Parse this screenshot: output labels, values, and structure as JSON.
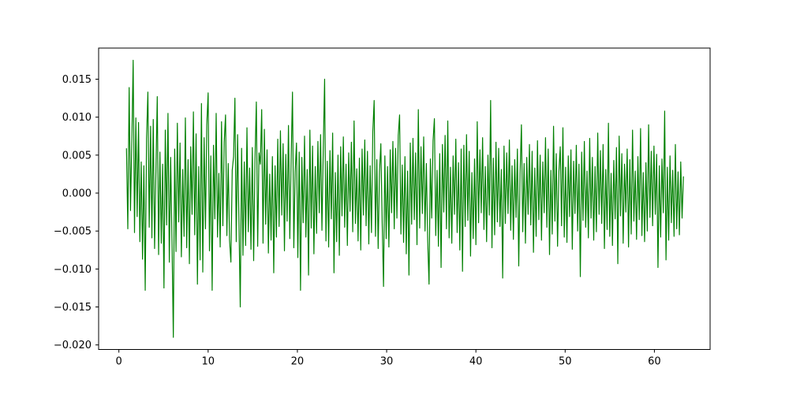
{
  "figure": {
    "background": "#ffffff"
  },
  "chart_data": {
    "type": "line",
    "title": "",
    "xlabel": "",
    "ylabel": "",
    "legend": null,
    "grid": false,
    "line_color": "#008000",
    "line_width": 1.2,
    "axis_color": "#000000",
    "xlim": [
      -2.27,
      66.24
    ],
    "ylim": [
      -0.0206,
      0.0191
    ],
    "x_tick_values": [
      0,
      10,
      20,
      30,
      40,
      50,
      60
    ],
    "x_tick_labels": [
      "0",
      "10",
      "20",
      "30",
      "40",
      "50",
      "60"
    ],
    "y_tick_values": [
      0.015,
      0.01,
      0.005,
      0.0,
      -0.005,
      -0.01,
      -0.015,
      -0.02
    ],
    "y_tick_labels": [
      "0.015",
      "0.010",
      "0.005",
      "0.000",
      "−0.005",
      "−0.010",
      "−0.015",
      "−0.020"
    ],
    "x_start": 0.85,
    "x_step": 0.15,
    "y_scale": 0.0001,
    "values_scaled": [
      59,
      -47,
      139,
      -23,
      68,
      175,
      -52,
      99,
      -31,
      93,
      -64,
      41,
      -87,
      36,
      -128,
      72,
      133,
      -45,
      88,
      -59,
      97,
      -73,
      29,
      127,
      -81,
      54,
      -66,
      38,
      -125,
      83,
      -42,
      105,
      -91,
      47,
      -63,
      -190,
      58,
      -77,
      92,
      -38,
      66,
      -84,
      31,
      -57,
      99,
      -72,
      44,
      -93,
      61,
      -28,
      107,
      -55,
      78,
      -120,
      35,
      -88,
      118,
      -104,
      73,
      -47,
      90,
      132,
      -76,
      49,
      -128,
      63,
      -34,
      105,
      -58,
      26,
      -71,
      94,
      -43,
      67,
      103,
      -56,
      39,
      -62,
      -91,
      30,
      48,
      125,
      -64,
      77,
      -35,
      -150,
      59,
      -82,
      41,
      -69,
      86,
      -51,
      33,
      -74,
      60,
      -89,
      45,
      120,
      -70,
      53,
      38,
      110,
      -66,
      84,
      -41,
      57,
      -79,
      25,
      -62,
      48,
      -105,
      36,
      -58,
      71,
      -44,
      82,
      -29,
      65,
      -76,
      51,
      -37,
      89,
      -60,
      43,
      133,
      -72,
      28,
      66,
      -85,
      54,
      -128,
      47,
      -39,
      75,
      -58,
      31,
      -108,
      83,
      -46,
      62,
      -80,
      35,
      -53,
      68,
      -26,
      77,
      -49,
      58,
      150,
      -63,
      42,
      -71,
      56,
      -34,
      79,
      -105,
      27,
      -64,
      50,
      -82,
      61,
      -30,
      74,
      -45,
      38,
      -69,
      53,
      -24,
      67,
      -51,
      95,
      -40,
      32,
      -63,
      46,
      -75,
      58,
      -29,
      70,
      -43,
      55,
      -67,
      36,
      -52,
      81,
      122,
      -57,
      44,
      -73,
      28,
      65,
      -38,
      -123,
      49,
      -60,
      35,
      -71,
      57,
      -26,
      68,
      -47,
      59,
      -33,
      76,
      103,
      -54,
      37,
      -65,
      48,
      -80,
      29,
      -108,
      66,
      -41,
      72,
      -35,
      53,
      -68,
      110,
      -46,
      61,
      -27,
      74,
      -50,
      39,
      -62,
      -120,
      45,
      -33,
      69,
      98,
      -56,
      30,
      -70,
      52,
      -98,
      64,
      -25,
      76,
      -47,
      95,
      -59,
      34,
      -66,
      49,
      -28,
      71,
      -52,
      40,
      -75,
      58,
      -103,
      63,
      -44,
      77,
      -36,
      55,
      -83,
      27,
      -60,
      45,
      -68,
      94,
      -39,
      57,
      -26,
      73,
      -48,
      35,
      -64,
      50,
      -29,
      122,
      -72,
      46,
      -55,
      67,
      -38,
      59,
      -44,
      31,
      -112,
      62,
      -40,
      53,
      -27,
      70,
      -49,
      36,
      -61,
      44,
      -32,
      58,
      -96,
      26,
      90,
      -51,
      39,
      -66,
      47,
      -28,
      64,
      -42,
      55,
      -78,
      33,
      -57,
      69,
      -35,
      50,
      -62,
      41,
      -26,
      73,
      -45,
      58,
      -81,
      30,
      -54,
      88,
      -37,
      52,
      -70,
      28,
      61,
      -43,
      86,
      -58,
      34,
      -65,
      49,
      -31,
      57,
      -74,
      42,
      -27,
      63,
      -50,
      38,
      -110,
      54,
      -36,
      68,
      -45,
      29,
      -59,
      72,
      -33,
      47,
      -62,
      35,
      -51,
      79,
      -28,
      56,
      -40,
      64,
      -73,
      31,
      -48,
      92,
      -57,
      26,
      -69,
      43,
      -34,
      60,
      -93,
      75,
      -30,
      52,
      -66,
      38,
      -25,
      58,
      -71,
      44,
      -54,
      83,
      -37,
      29,
      -61,
      48,
      -35,
      85,
      -56,
      27,
      -64,
      40,
      -50,
      90,
      -32,
      55,
      -43,
      62,
      -28,
      51,
      -98,
      36,
      -58,
      45,
      -26,
      108,
      -88,
      34,
      -62,
      49,
      -39,
      30,
      -57,
      64,
      -47,
      28,
      -55,
      41,
      -33,
      22
    ]
  }
}
